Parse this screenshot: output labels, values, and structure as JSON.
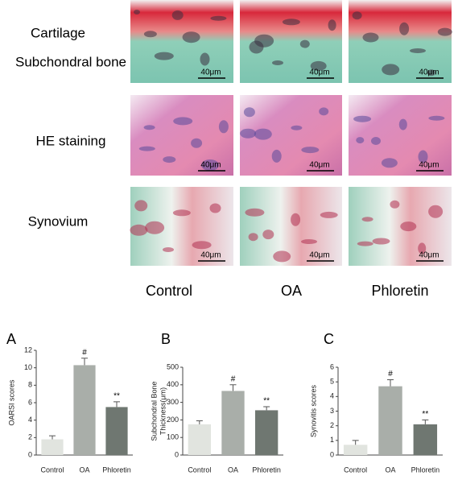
{
  "histology": {
    "row_labels": [
      "Cartilage",
      "Subchondral bone",
      "HE staining",
      "Synovium"
    ],
    "column_labels": [
      "Control",
      "OA",
      "Phloretin"
    ],
    "scale_bar": "40μm"
  },
  "chart_data": [
    {
      "type": "bar",
      "panel": "A",
      "ylabel": [
        "OARSI scores"
      ],
      "categories": [
        "Control",
        "OA",
        "Phloretin"
      ],
      "values": [
        1.8,
        10.3,
        5.5
      ],
      "errors": [
        0.4,
        0.8,
        0.6
      ],
      "markers": [
        null,
        "#",
        "**"
      ],
      "colors": [
        "#e1e4df",
        "#a9aea9",
        "#6f7771"
      ],
      "ylim": [
        0,
        12
      ],
      "yticks": [
        0,
        2,
        4,
        6,
        8,
        10,
        12
      ]
    },
    {
      "type": "bar",
      "panel": "B",
      "ylabel": [
        "Subchondral Bone",
        "Thickness(μm)"
      ],
      "categories": [
        "Control",
        "OA",
        "Phloretin"
      ],
      "values": [
        175,
        365,
        255
      ],
      "errors": [
        20,
        35,
        20
      ],
      "markers": [
        null,
        "#",
        "**"
      ],
      "colors": [
        "#e1e4df",
        "#a9aea9",
        "#6f7771"
      ],
      "ylim": [
        0,
        500
      ],
      "yticks": [
        0,
        100,
        200,
        300,
        400,
        500
      ]
    },
    {
      "type": "bar",
      "panel": "C",
      "ylabel": [
        "Synovitis scores"
      ],
      "categories": [
        "Control",
        "OA",
        "Phloretin"
      ],
      "values": [
        0.7,
        4.7,
        2.1
      ],
      "errors": [
        0.3,
        0.45,
        0.3
      ],
      "markers": [
        null,
        "#",
        "**"
      ],
      "colors": [
        "#e1e4df",
        "#a9aea9",
        "#6f7771"
      ],
      "ylim": [
        0,
        6
      ],
      "yticks": [
        0,
        1,
        2,
        3,
        4,
        5,
        6
      ]
    }
  ]
}
